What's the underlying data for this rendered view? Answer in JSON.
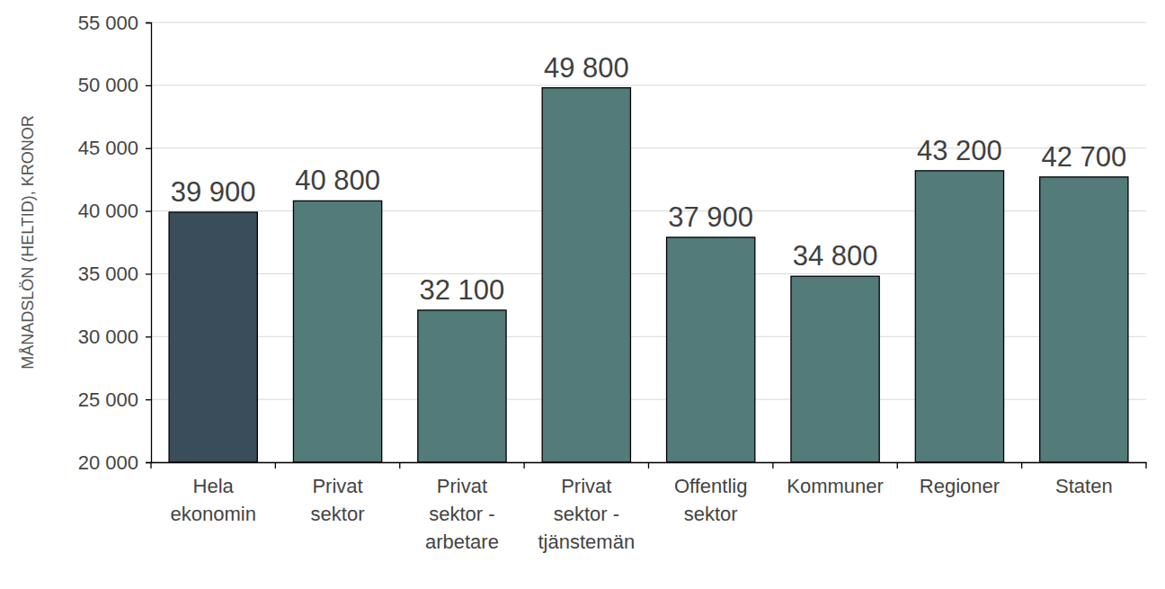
{
  "chart_data": {
    "type": "bar",
    "y_label": "MÅNADSLÖN (HELTID), KRONOR",
    "categories": [
      "Hela ekonomin",
      "Privat sektor",
      "Privat sektor - arbetare",
      "Privat sektor - tjänstemän",
      "Offentlig sektor",
      "Kommuner",
      "Regioner",
      "Staten"
    ],
    "values": [
      39900,
      40800,
      32100,
      49800,
      37900,
      34800,
      43200,
      42700
    ],
    "value_labels": [
      "39 900",
      "40 800",
      "32 100",
      "49 800",
      "37 900",
      "34 800",
      "43 200",
      "42 700"
    ],
    "colors": [
      "#394e5a",
      "#537b79",
      "#537b79",
      "#537b79",
      "#537b79",
      "#537b79",
      "#537b79",
      "#537b79"
    ],
    "ylim": [
      20000,
      55000
    ],
    "yticks": [
      {
        "value": 20000,
        "label": "20 000"
      },
      {
        "value": 25000,
        "label": "25 000"
      },
      {
        "value": 30000,
        "label": "30 000"
      },
      {
        "value": 35000,
        "label": "35 000"
      },
      {
        "value": 40000,
        "label": "40 000"
      },
      {
        "value": 45000,
        "label": "45 000"
      },
      {
        "value": 50000,
        "label": "50 000"
      },
      {
        "value": 55000,
        "label": "55 000"
      }
    ],
    "grid": true,
    "data_labels": true
  }
}
